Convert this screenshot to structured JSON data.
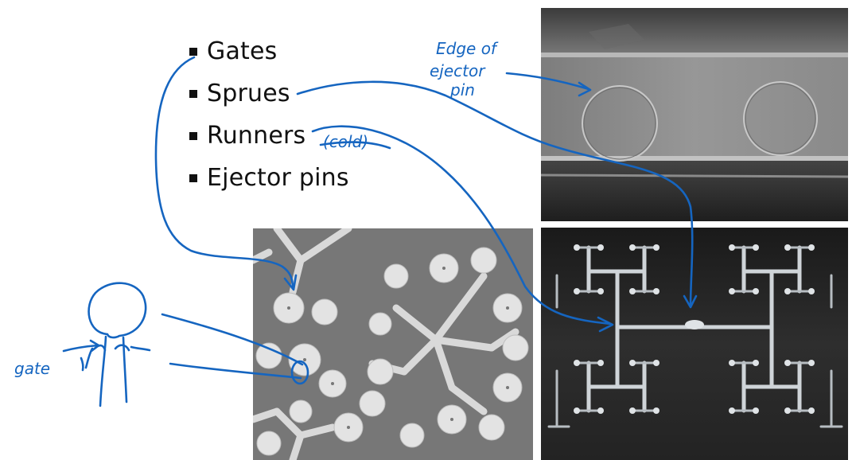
{
  "bullets": [
    {
      "label": "Gates"
    },
    {
      "label": "Sprues"
    },
    {
      "label": "Runners"
    },
    {
      "label": "Ejector pins"
    }
  ],
  "annotations": {
    "cold": "(cold)",
    "gate": "gate",
    "edge_line1": "Edge of",
    "edge_line2": "ejector",
    "edge_line3": "pin"
  },
  "images": {
    "ejector_pin_photo": "grey-molded-part-with-ejector-pin-marks",
    "gates_photo": "sprue-tree-with-round-parts",
    "runner_photo": "fractal-runner-system"
  },
  "colors": {
    "ink": "#1565c0",
    "text": "#111111"
  }
}
